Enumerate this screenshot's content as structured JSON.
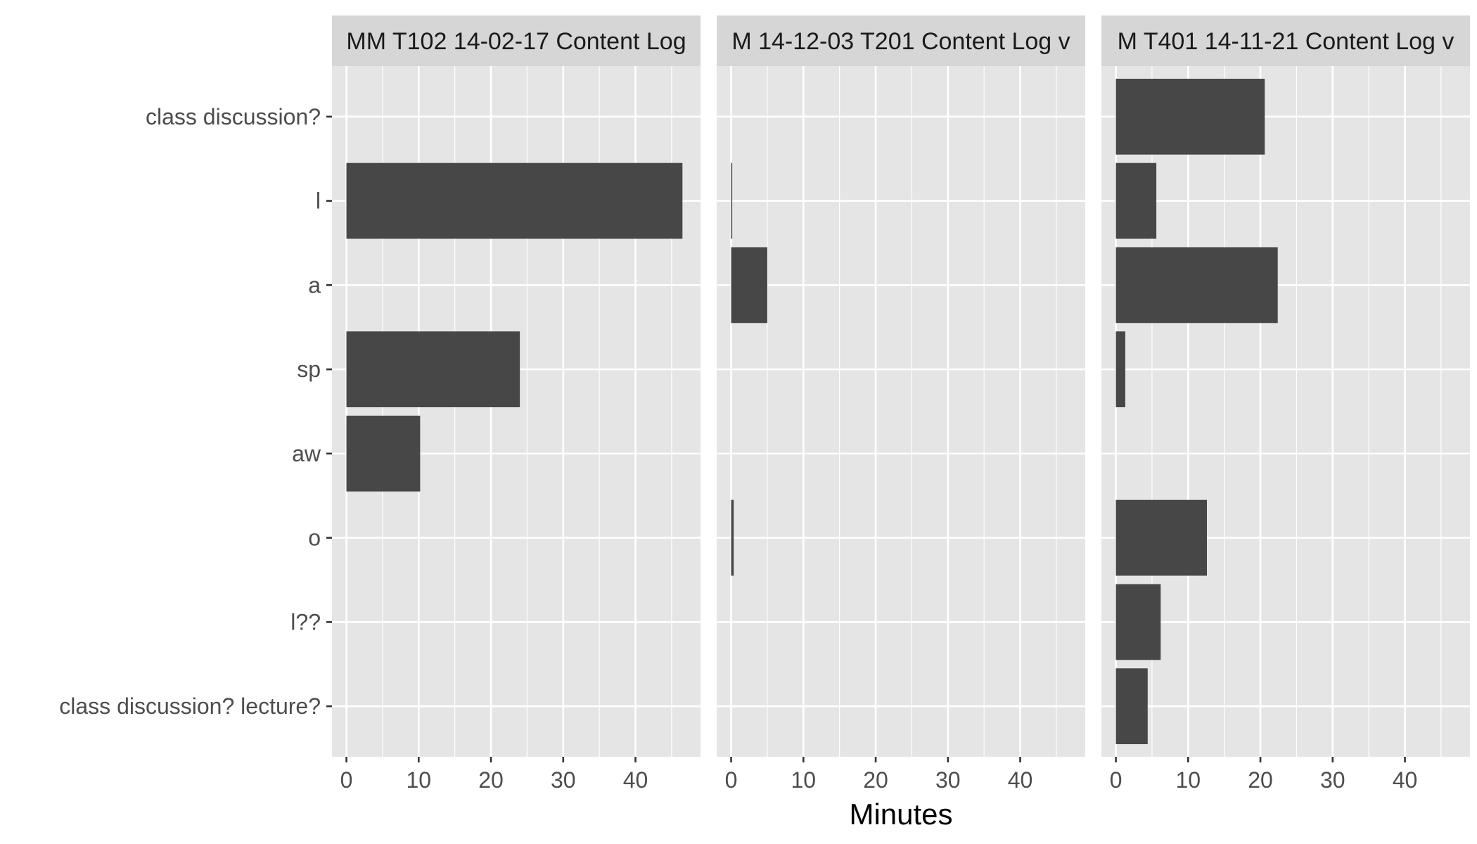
{
  "chart_data": {
    "type": "bar",
    "orientation": "horizontal",
    "xlabel": "Minutes",
    "ylabel": "",
    "xlim": [
      -2,
      49
    ],
    "xticks": [
      0,
      10,
      20,
      30,
      40
    ],
    "grid": true,
    "categories": [
      "class discussion?",
      "l",
      "a",
      "sp",
      "aw",
      "o",
      "l??",
      "class discussion? lecture?"
    ],
    "panels": [
      {
        "title": "MM T102 14-02-17 Content Log",
        "values": [
          null,
          46.5,
          null,
          24,
          10.2,
          null,
          null,
          null
        ]
      },
      {
        "title": "M 14-12-03 T201 Content Log v",
        "values": [
          null,
          0.15,
          5,
          null,
          null,
          0.35,
          null,
          null
        ]
      },
      {
        "title": "M T401 14-11-21 Content Log v",
        "values": [
          20.6,
          5.6,
          22.4,
          1.3,
          null,
          12.6,
          6.2,
          4.4
        ]
      }
    ],
    "colors": {
      "bar": "#474747",
      "panel_bg": "#e5e5e5",
      "strip_bg": "#d6d6d6",
      "grid": "#ffffff"
    }
  }
}
